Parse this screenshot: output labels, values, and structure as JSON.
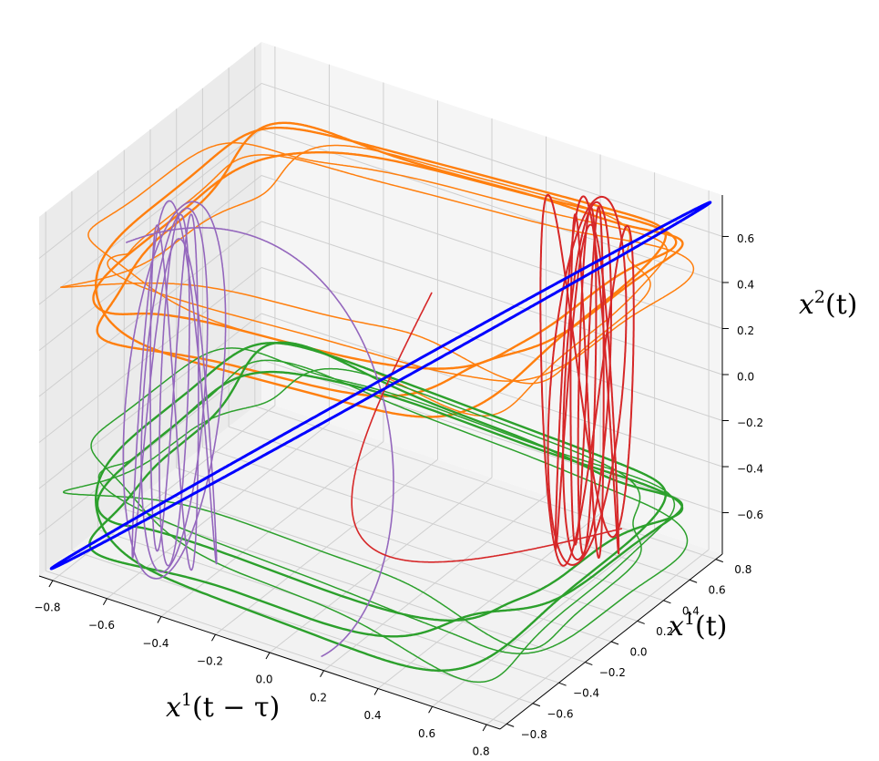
{
  "chart_data": {
    "type": "line3d",
    "axes": {
      "x": {
        "label_main": "x",
        "label_sup": "1",
        "label_tail": "(t − τ)",
        "range": [
          -0.85,
          0.85
        ],
        "ticks": [
          -0.8,
          -0.6,
          -0.4,
          -0.2,
          0.0,
          0.2,
          0.4,
          0.6,
          0.8
        ],
        "tick_labels": [
          "−0.8",
          "−0.6",
          "−0.4",
          "−0.2",
          "0.0",
          "0.2",
          "0.4",
          "0.6",
          "0.8"
        ]
      },
      "y": {
        "label_main": "x",
        "label_sup": "1",
        "label_tail": "(t)",
        "range": [
          -0.85,
          0.85
        ],
        "ticks": [
          -0.8,
          -0.6,
          -0.4,
          -0.2,
          0.0,
          0.2,
          0.4,
          0.6,
          0.8
        ],
        "tick_labels": [
          "−0.8",
          "−0.6",
          "−0.4",
          "−0.2",
          "0.0",
          "0.2",
          "0.4",
          "0.6",
          "0.8"
        ]
      },
      "z": {
        "label_main": "x",
        "label_sup": "2",
        "label_tail": "(t)",
        "range": [
          -0.78,
          0.78
        ],
        "ticks": [
          -0.6,
          -0.4,
          -0.2,
          0.0,
          0.2,
          0.4,
          0.6
        ],
        "tick_labels": [
          "−0.6",
          "−0.4",
          "−0.2",
          "0.0",
          "0.2",
          "0.4",
          "0.6"
        ]
      }
    },
    "grid": true,
    "pane_color": "#f2f2f2",
    "series": [
      {
        "color": "#0000ff",
        "description_points": [
          [
            -0.8,
            -0.8,
            -0.75
          ],
          [
            -0.4,
            -0.4,
            -0.38
          ],
          [
            0.0,
            0.0,
            0.0
          ],
          [
            0.4,
            0.4,
            0.38
          ],
          [
            0.8,
            0.8,
            0.75
          ]
        ]
      },
      {
        "color": "#ff7f0e",
        "description_points": [
          [
            -0.8,
            -0.8,
            0.45
          ],
          [
            0.0,
            -0.8,
            0.5
          ],
          [
            0.8,
            -0.8,
            0.6
          ],
          [
            0.8,
            0.8,
            0.5
          ],
          [
            0.0,
            0.8,
            0.45
          ],
          [
            -0.8,
            0.8,
            0.45
          ]
        ]
      },
      {
        "color": "#2ca02c",
        "description_points": [
          [
            -0.8,
            -0.8,
            -0.45
          ],
          [
            0.0,
            -0.8,
            -0.55
          ],
          [
            0.8,
            -0.8,
            -0.45
          ],
          [
            0.8,
            0.8,
            -0.5
          ],
          [
            0.0,
            0.8,
            -0.45
          ],
          [
            -0.8,
            0.8,
            -0.5
          ]
        ]
      },
      {
        "color": "#9467bd",
        "description_points": [
          [
            -0.5,
            -0.5,
            -0.75
          ],
          [
            -0.5,
            -0.5,
            0.75
          ],
          [
            -0.3,
            0.4,
            0.7
          ],
          [
            0.1,
            0.2,
            0.0
          ]
        ]
      },
      {
        "color": "#d62728",
        "description_points": [
          [
            0.5,
            0.5,
            -0.75
          ],
          [
            0.5,
            0.5,
            0.75
          ],
          [
            0.3,
            -0.4,
            -0.7
          ],
          [
            -0.1,
            -0.2,
            0.0
          ]
        ]
      }
    ]
  }
}
